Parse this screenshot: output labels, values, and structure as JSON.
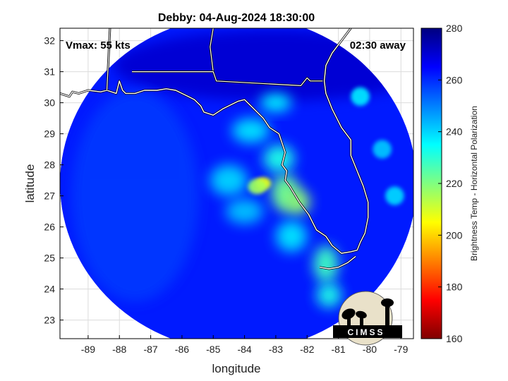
{
  "chart_data": {
    "type": "heatmap",
    "title": "Debby: 04-Aug-2024 18:30:00",
    "xlabel": "longitude",
    "ylabel": "latitude",
    "xlim": [
      -89.9,
      -78.6
    ],
    "ylim": [
      22.4,
      32.4
    ],
    "x_ticks": [
      -89,
      -88,
      -87,
      -86,
      -85,
      -84,
      -83,
      -82,
      -81,
      -80,
      -79
    ],
    "y_ticks": [
      23,
      24,
      25,
      26,
      27,
      28,
      29,
      30,
      31,
      32
    ],
    "grid": true,
    "annotations": {
      "vmax": "Vmax: 55 kts",
      "time_offset": "02:30 away"
    },
    "swath": {
      "center": [
        -84.2,
        27.4
      ],
      "radius_lon": 5.7,
      "radius_lat": 5.4,
      "background_value": 262
    },
    "storm_center": [
      -83.4,
      27.4
    ],
    "colorbar": {
      "label": "Brightness Temp - Horizontal Polarization",
      "min": 160,
      "max": 280,
      "ticks": [
        160,
        180,
        200,
        220,
        240,
        260,
        280
      ],
      "colors": [
        "#7f0000",
        "#ff0000",
        "#ff8000",
        "#ffff00",
        "#80ff80",
        "#00ffff",
        "#0080ff",
        "#0000ff",
        "#00007f"
      ]
    },
    "features": [
      {
        "lon": -83.4,
        "lat": 27.4,
        "rx": 0.25,
        "ry": 0.2,
        "value": 205
      },
      {
        "lon": -83.6,
        "lat": 27.3,
        "rx": 0.3,
        "ry": 0.25,
        "value": 215
      },
      {
        "lon": -82.7,
        "lat": 27.1,
        "rx": 0.45,
        "ry": 0.6,
        "value": 222
      },
      {
        "lon": -82.3,
        "lat": 26.8,
        "rx": 0.4,
        "ry": 0.4,
        "value": 218
      },
      {
        "lon": -82.9,
        "lat": 28.2,
        "rx": 0.5,
        "ry": 0.45,
        "value": 232
      },
      {
        "lon": -83.8,
        "lat": 29.1,
        "rx": 0.6,
        "ry": 0.4,
        "value": 238
      },
      {
        "lon": -83.0,
        "lat": 30.0,
        "rx": 0.5,
        "ry": 0.3,
        "value": 236
      },
      {
        "lon": -84.5,
        "lat": 27.5,
        "rx": 0.6,
        "ry": 0.5,
        "value": 240
      },
      {
        "lon": -84.0,
        "lat": 26.5,
        "rx": 0.6,
        "ry": 0.4,
        "value": 242
      },
      {
        "lon": -82.5,
        "lat": 25.7,
        "rx": 0.5,
        "ry": 0.5,
        "value": 238
      },
      {
        "lon": -81.4,
        "lat": 24.8,
        "rx": 0.4,
        "ry": 0.6,
        "value": 228
      },
      {
        "lon": -81.3,
        "lat": 23.8,
        "rx": 0.4,
        "ry": 0.4,
        "value": 232
      },
      {
        "lon": -80.3,
        "lat": 30.2,
        "rx": 0.3,
        "ry": 0.3,
        "value": 238
      },
      {
        "lon": -79.2,
        "lat": 27.0,
        "rx": 0.3,
        "ry": 0.3,
        "value": 240
      },
      {
        "lon": -79.6,
        "lat": 28.5,
        "rx": 0.3,
        "ry": 0.3,
        "value": 242
      }
    ],
    "coastlines": [
      [
        [
          -89.9,
          30.3
        ],
        [
          -89.6,
          30.2
        ],
        [
          -89.5,
          30.35
        ],
        [
          -89.3,
          30.3
        ],
        [
          -89.0,
          30.4
        ],
        [
          -88.6,
          30.35
        ],
        [
          -88.4,
          30.4
        ],
        [
          -88.1,
          30.3
        ],
        [
          -88.0,
          30.7
        ],
        [
          -87.9,
          30.4
        ],
        [
          -87.8,
          30.3
        ],
        [
          -87.5,
          30.3
        ],
        [
          -87.2,
          30.4
        ],
        [
          -86.8,
          30.4
        ],
        [
          -86.5,
          30.45
        ],
        [
          -86.2,
          30.4
        ],
        [
          -85.8,
          30.2
        ],
        [
          -85.6,
          30.1
        ],
        [
          -85.4,
          29.9
        ],
        [
          -85.3,
          29.7
        ],
        [
          -85.0,
          29.6
        ],
        [
          -84.7,
          29.8
        ],
        [
          -84.4,
          29.95
        ],
        [
          -84.2,
          30.05
        ],
        [
          -84.0,
          30.1
        ],
        [
          -83.8,
          29.9
        ],
        [
          -83.6,
          29.7
        ],
        [
          -83.4,
          29.5
        ],
        [
          -83.2,
          29.2
        ],
        [
          -82.9,
          29.0
        ],
        [
          -82.8,
          28.7
        ],
        [
          -82.7,
          28.4
        ],
        [
          -82.8,
          28.0
        ],
        [
          -82.65,
          27.8
        ],
        [
          -82.7,
          27.5
        ],
        [
          -82.55,
          27.3
        ],
        [
          -82.4,
          27.05
        ],
        [
          -82.25,
          26.8
        ],
        [
          -82.1,
          26.6
        ],
        [
          -81.95,
          26.4
        ],
        [
          -81.8,
          26.1
        ],
        [
          -81.7,
          25.9
        ],
        [
          -81.4,
          25.7
        ],
        [
          -81.2,
          25.4
        ],
        [
          -80.9,
          25.15
        ],
        [
          -80.6,
          25.2
        ],
        [
          -80.4,
          25.25
        ],
        [
          -80.3,
          25.5
        ],
        [
          -80.15,
          25.8
        ],
        [
          -80.05,
          26.3
        ],
        [
          -80.05,
          26.8
        ],
        [
          -80.2,
          27.3
        ],
        [
          -80.4,
          27.8
        ],
        [
          -80.6,
          28.3
        ],
        [
          -80.6,
          28.8
        ],
        [
          -80.9,
          29.2
        ],
        [
          -81.2,
          29.8
        ],
        [
          -81.4,
          30.3
        ],
        [
          -81.45,
          30.7
        ],
        [
          -81.4,
          31.2
        ],
        [
          -81.2,
          31.6
        ],
        [
          -80.9,
          32.0
        ],
        [
          -80.6,
          32.4
        ]
      ],
      [
        [
          -81.6,
          24.7
        ],
        [
          -81.3,
          24.65
        ],
        [
          -81.0,
          24.7
        ],
        [
          -80.7,
          24.85
        ],
        [
          -80.45,
          25.05
        ]
      ]
    ],
    "borders": [
      [
        [
          -88.3,
          32.4
        ],
        [
          -88.4,
          30.4
        ]
      ],
      [
        [
          -85.0,
          32.4
        ],
        [
          -85.1,
          31.8
        ],
        [
          -85.0,
          31.0
        ]
      ],
      [
        [
          -87.6,
          31.0
        ],
        [
          -85.0,
          31.0
        ],
        [
          -84.9,
          30.7
        ],
        [
          -82.2,
          30.55
        ],
        [
          -82.0,
          30.8
        ],
        [
          -81.9,
          30.7
        ],
        [
          -81.5,
          30.7
        ]
      ]
    ],
    "logo_text": "CIMSS"
  }
}
